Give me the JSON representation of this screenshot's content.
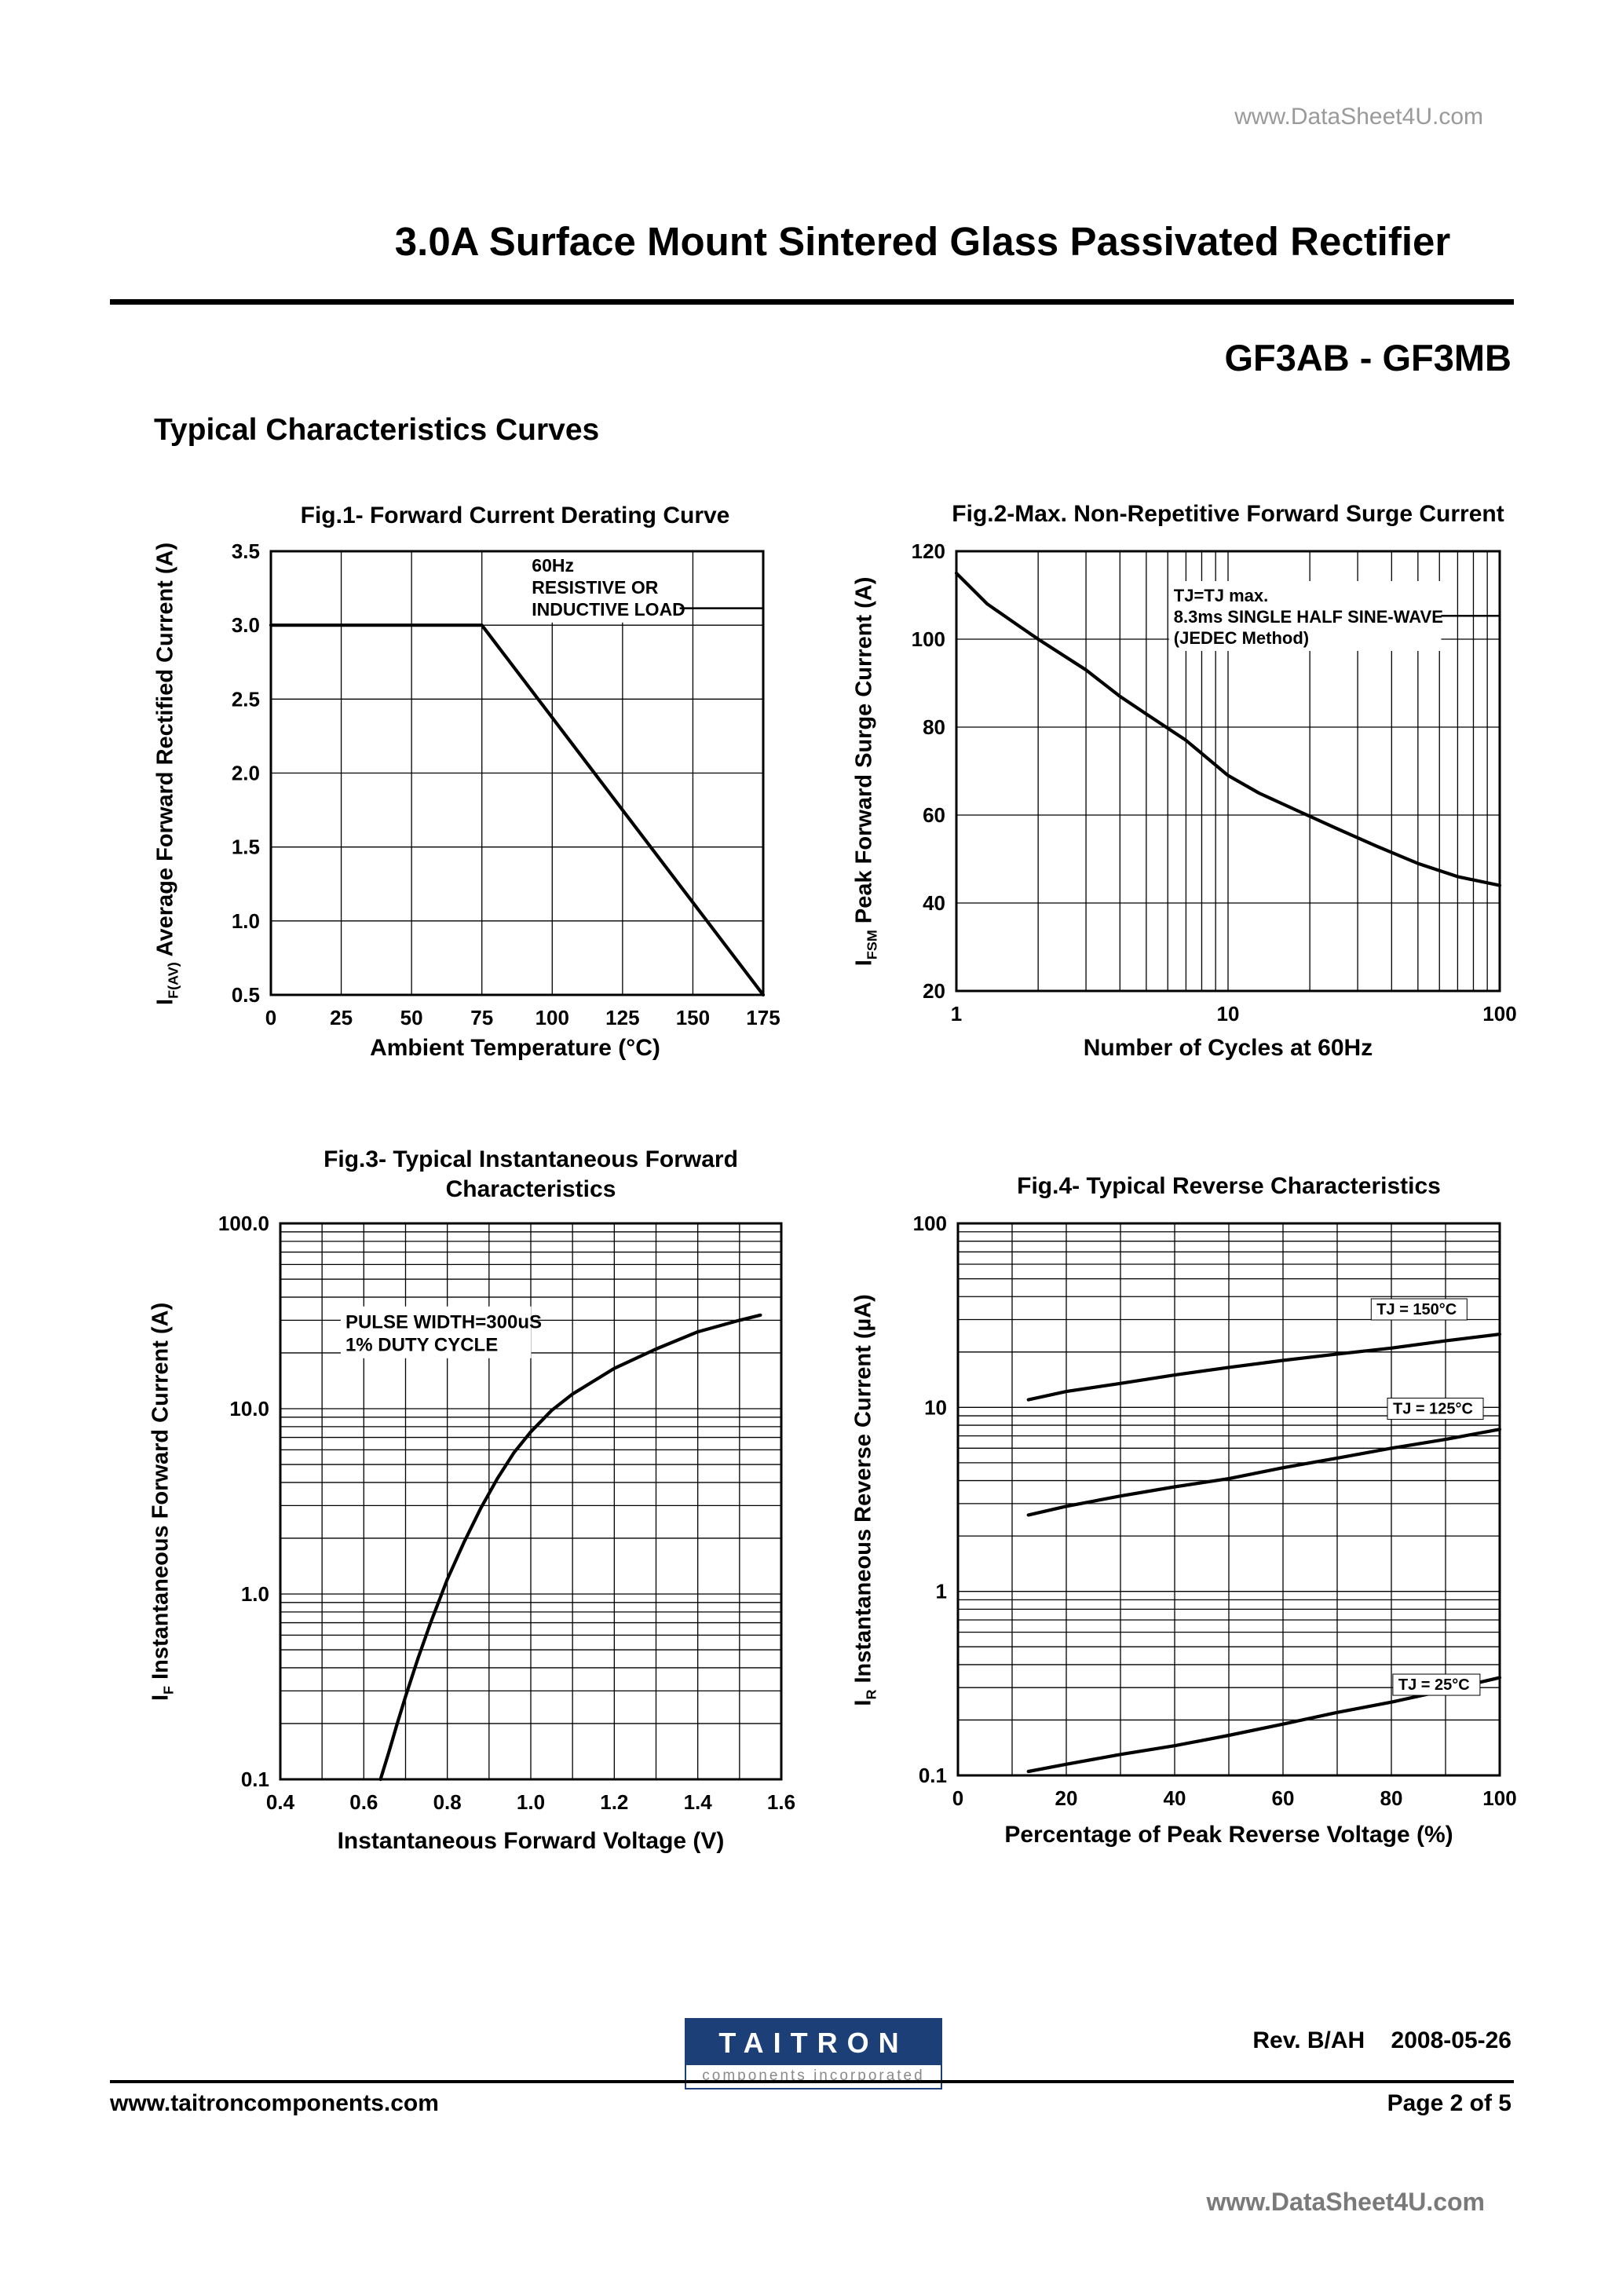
{
  "page": {
    "watermark_top": "www.DataSheet4U.com",
    "watermark_bottom": "www.DataSheet4U.com",
    "title": "3.0A Surface Mount Sintered Glass Passivated Rectifier",
    "part_number": "GF3AB - GF3MB",
    "section_heading": "Typical Characteristics Curves"
  },
  "footer": {
    "logo_text": "TAITRON",
    "logo_subtext": "components incorporated",
    "revision": "Rev. B/AH    2008-05-26",
    "website": "www.taitroncomponents.com",
    "page_number": "Page 2 of 5"
  },
  "chart_data": [
    {
      "type": "line",
      "title": "Fig.1- Forward Current Derating Curve",
      "xlabel": "Ambient Temperature (°C)",
      "ylabel": {
        "prefix": "I",
        "sub": "F(AV)",
        "rest": " Average Forward Rectified Current (A)"
      },
      "x_axis": {
        "scale": "linear",
        "min": 0,
        "max": 175,
        "grid_step": 25,
        "ticks": [
          {
            "v": 0,
            "label": "0"
          },
          {
            "v": 25,
            "label": "25"
          },
          {
            "v": 50,
            "label": "50"
          },
          {
            "v": 75,
            "label": "75"
          },
          {
            "v": 100,
            "label": "100"
          },
          {
            "v": 125,
            "label": "125"
          },
          {
            "v": 150,
            "label": "150"
          },
          {
            "v": 175,
            "label": "175"
          }
        ]
      },
      "y_axis": {
        "scale": "linear",
        "min": 0.5,
        "max": 3.5,
        "grid_step": 0.5,
        "ticks": [
          {
            "v": 0.5,
            "label": "0.5"
          },
          {
            "v": 1,
            "label": "1.0"
          },
          {
            "v": 1.5,
            "label": "1.5"
          },
          {
            "v": 2,
            "label": "2.0"
          },
          {
            "v": 2.5,
            "label": "2.5"
          },
          {
            "v": 3,
            "label": "3.0"
          },
          {
            "v": 3.5,
            "label": "3.5"
          }
        ]
      },
      "series": [
        {
          "name": "derating-curve",
          "points": [
            [
              0,
              3
            ],
            [
              75,
              3
            ],
            [
              175,
              0.5
            ]
          ]
        }
      ],
      "annotations": [
        {
          "lines": [
            "60Hz",
            "RESISTIVE OR",
            "INDUCTIVE LOAD"
          ],
          "x": 0.53,
          "y": 0.005,
          "size": 23,
          "weight": "bold",
          "tail_line": 2
        }
      ]
    },
    {
      "type": "line",
      "title": "Fig.2-Max. Non-Repetitive Forward Surge Current",
      "xlabel": "Number of Cycles at 60Hz",
      "ylabel": {
        "prefix": "I",
        "sub": "FSM",
        "rest": " Peak Forward Surge Current (A)"
      },
      "x_axis": {
        "scale": "log",
        "min": 1,
        "max": 100,
        "ticks": [
          {
            "v": 1,
            "label": "1"
          },
          {
            "v": 10,
            "label": "10"
          },
          {
            "v": 100,
            "label": "100"
          }
        ]
      },
      "y_axis": {
        "scale": "linear",
        "min": 20,
        "max": 120,
        "grid_step": 20,
        "ticks": [
          {
            "v": 20,
            "label": "20"
          },
          {
            "v": 40,
            "label": "40"
          },
          {
            "v": 60,
            "label": "60"
          },
          {
            "v": 80,
            "label": "80"
          },
          {
            "v": 100,
            "label": "100"
          },
          {
            "v": 120,
            "label": "120"
          }
        ]
      },
      "series": [
        {
          "name": "surge-current-curve",
          "points": [
            [
              1,
              115
            ],
            [
              1.3,
              108
            ],
            [
              1.7,
              103
            ],
            [
              2,
              100
            ],
            [
              3,
              93
            ],
            [
              4,
              87
            ],
            [
              5,
              83
            ],
            [
              7,
              77
            ],
            [
              10,
              69
            ],
            [
              13,
              65
            ],
            [
              18,
              61
            ],
            [
              25,
              57
            ],
            [
              35,
              53
            ],
            [
              50,
              49
            ],
            [
              70,
              46
            ],
            [
              100,
              44
            ]
          ]
        }
      ],
      "annotations": [
        {
          "lines": [
            "TJ=TJ max.",
            "8.3ms SINGLE HALF SINE-WAVE",
            "(JEDEC Method)"
          ],
          "x": 0.4,
          "y": 0.075,
          "size": 22,
          "weight": "normal",
          "tail_line": 1
        }
      ]
    },
    {
      "type": "line",
      "title": "Fig.3- Typical Instantaneous Forward\nCharacteristics",
      "xlabel": "Instantaneous Forward Voltage (V)",
      "ylabel": {
        "prefix": "I",
        "sub": "F",
        "rest": " Instantaneous Forward Current (A)"
      },
      "x_axis": {
        "scale": "linear",
        "min": 0.4,
        "max": 1.6,
        "grid_step": 0.1,
        "ticks": [
          {
            "v": 0.4,
            "label": "0.4"
          },
          {
            "v": 0.6,
            "label": "0.6"
          },
          {
            "v": 0.8,
            "label": "0.8"
          },
          {
            "v": 1,
            "label": "1.0"
          },
          {
            "v": 1.2,
            "label": "1.2"
          },
          {
            "v": 1.4,
            "label": "1.4"
          },
          {
            "v": 1.6,
            "label": "1.6"
          }
        ]
      },
      "y_axis": {
        "scale": "log",
        "min": 0.1,
        "max": 100,
        "ticks": [
          {
            "v": 100,
            "label": "100.0"
          },
          {
            "v": 10,
            "label": "10.0"
          },
          {
            "v": 1,
            "label": "1.0"
          },
          {
            "v": 0.1,
            "label": "0.1"
          }
        ]
      },
      "series": [
        {
          "name": "forward-characteristics-curve",
          "points": [
            [
              0.64,
              0.1
            ],
            [
              0.66,
              0.14
            ],
            [
              0.68,
              0.2
            ],
            [
              0.7,
              0.28
            ],
            [
              0.73,
              0.45
            ],
            [
              0.76,
              0.7
            ],
            [
              0.8,
              1.2
            ],
            [
              0.84,
              1.9
            ],
            [
              0.88,
              2.9
            ],
            [
              0.92,
              4.2
            ],
            [
              0.96,
              5.8
            ],
            [
              1,
              7.5
            ],
            [
              1.05,
              9.8
            ],
            [
              1.1,
              12
            ],
            [
              1.2,
              16.5
            ],
            [
              1.3,
              21
            ],
            [
              1.4,
              26
            ],
            [
              1.5,
              30
            ],
            [
              1.55,
              32
            ]
          ]
        }
      ],
      "annotations": [
        {
          "lines": [
            "PULSE WIDTH=300uS",
            "1% DUTY CYCLE"
          ],
          "x": 0.13,
          "y": 0.155,
          "size": 24,
          "weight": "bold",
          "tail_line": null
        }
      ]
    },
    {
      "type": "line",
      "title": "Fig.4- Typical Reverse Characteristics",
      "xlabel": "Percentage of Peak Reverse Voltage (%)",
      "ylabel": {
        "prefix": "I",
        "sub": "R",
        "rest": " Instantaneous Reverse Current (µA)"
      },
      "x_axis": {
        "scale": "linear",
        "min": 0,
        "max": 100,
        "grid_step": 10,
        "ticks": [
          {
            "v": 0,
            "label": "0"
          },
          {
            "v": 20,
            "label": "20"
          },
          {
            "v": 40,
            "label": "40"
          },
          {
            "v": 60,
            "label": "60"
          },
          {
            "v": 80,
            "label": "80"
          },
          {
            "v": 100,
            "label": "100"
          }
        ]
      },
      "y_axis": {
        "scale": "log",
        "min": 0.1,
        "max": 100,
        "ticks": [
          {
            "v": 100,
            "label": "100"
          },
          {
            "v": 10,
            "label": "10"
          },
          {
            "v": 1,
            "label": "1"
          },
          {
            "v": 0.1,
            "label": "0.1"
          }
        ]
      },
      "series": [
        {
          "name": "tj-150-curve",
          "label": "TJ = 150°C",
          "label_pos": [
            0.77,
            0.165
          ],
          "points": [
            [
              13,
              11
            ],
            [
              20,
              12.2
            ],
            [
              30,
              13.5
            ],
            [
              40,
              15
            ],
            [
              50,
              16.5
            ],
            [
              60,
              18
            ],
            [
              70,
              19.5
            ],
            [
              80,
              21
            ],
            [
              90,
              23
            ],
            [
              100,
              25
            ]
          ]
        },
        {
          "name": "tj-125-curve",
          "label": "TJ = 125°C",
          "label_pos": [
            0.8,
            0.345
          ],
          "points": [
            [
              13,
              2.6
            ],
            [
              20,
              2.9
            ],
            [
              30,
              3.3
            ],
            [
              40,
              3.7
            ],
            [
              50,
              4.1
            ],
            [
              60,
              4.7
            ],
            [
              70,
              5.3
            ],
            [
              80,
              6
            ],
            [
              90,
              6.7
            ],
            [
              100,
              7.6
            ]
          ]
        },
        {
          "name": "tj-25-curve",
          "label": "TJ = 25°C",
          "label_pos": [
            0.81,
            0.845
          ],
          "points": [
            [
              13,
              0.105
            ],
            [
              20,
              0.115
            ],
            [
              30,
              0.13
            ],
            [
              40,
              0.145
            ],
            [
              50,
              0.165
            ],
            [
              60,
              0.19
            ],
            [
              70,
              0.22
            ],
            [
              80,
              0.25
            ],
            [
              90,
              0.29
            ],
            [
              100,
              0.34
            ]
          ]
        }
      ],
      "annotations": []
    }
  ]
}
